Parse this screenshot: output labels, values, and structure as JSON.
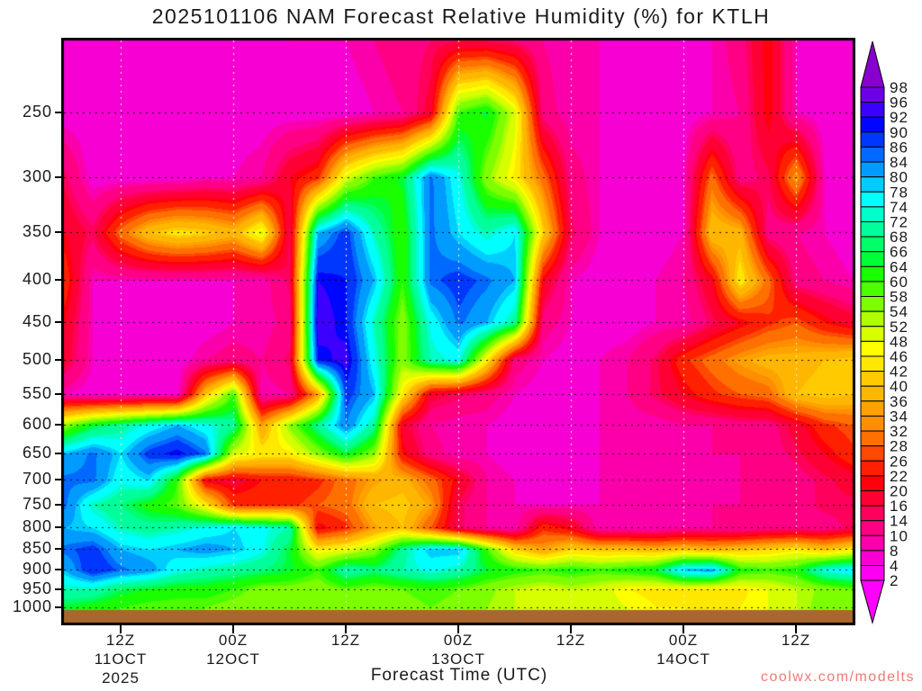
{
  "title": "2025101106 NAM Forecast Relative Humidity (%) for KTLH",
  "watermark": "coolwx.com/modelts",
  "watermark_color": "#F07A72",
  "chart_data": {
    "type": "heatmap",
    "title": "2025101106 NAM Forecast Relative Humidity (%) for KTLH",
    "xlabel": "Forecast Time (UTC)",
    "ylabel": "",
    "y_axis_kind": "log-pressure-hPa",
    "y_ticks": [
      250,
      300,
      350,
      400,
      450,
      500,
      550,
      600,
      650,
      700,
      750,
      800,
      850,
      900,
      950,
      1000
    ],
    "y_range_hpa": [
      205,
      1050
    ],
    "x_range_hours": [
      0,
      84
    ],
    "x_ticks": [
      {
        "hour": 6,
        "lines": [
          "12Z",
          "11OCT",
          "2025"
        ]
      },
      {
        "hour": 18,
        "lines": [
          "00Z",
          "12OCT"
        ]
      },
      {
        "hour": 30,
        "lines": [
          "12Z"
        ]
      },
      {
        "hour": 42,
        "lines": [
          "00Z",
          "13OCT"
        ]
      },
      {
        "hour": 54,
        "lines": [
          "12Z"
        ]
      },
      {
        "hour": 66,
        "lines": [
          "00Z",
          "14OCT"
        ]
      },
      {
        "hour": 78,
        "lines": [
          "12Z"
        ]
      }
    ],
    "grid": {
      "h_color": "#000000",
      "v_color": "#FFF5D2",
      "style": "dotted"
    },
    "legend_position": "right-colorbar",
    "level_boundaries": [
      2,
      4,
      8,
      10,
      14,
      16,
      20,
      22,
      26,
      28,
      32,
      34,
      36,
      40,
      42,
      46,
      48,
      52,
      54,
      58,
      60,
      64,
      66,
      68,
      72,
      74,
      78,
      80,
      84,
      86,
      90,
      92,
      96,
      98
    ],
    "band_colors": [
      "#FF00FF",
      "#FB00F2",
      "#F600D4",
      "#FB00AA",
      "#FF0084",
      "#FF005C",
      "#FF0034",
      "#FF000C",
      "#FF2000",
      "#FF4800",
      "#FF7000",
      "#FF8E00",
      "#FFA200",
      "#FFB600",
      "#FFCA00",
      "#FFE800",
      "#FFFF00",
      "#D7FF00",
      "#AFFF00",
      "#7DFF00",
      "#4BFF00",
      "#19FF00",
      "#00FF37",
      "#00FF69",
      "#00FF9B",
      "#00FFCD",
      "#00FFFF",
      "#00CDFF",
      "#009BFF",
      "#0069FF",
      "#0037FF",
      "#0005FF",
      "#3C00FF",
      "#6E00E6",
      "#8800CC"
    ],
    "ground_color": "#A9672F",
    "axis_color": "#000000",
    "hours": [
      0,
      3,
      6,
      9,
      12,
      15,
      18,
      21,
      24,
      27,
      30,
      33,
      36,
      39,
      42,
      45,
      48,
      51,
      54,
      57,
      60,
      63,
      66,
      69,
      72,
      75,
      78,
      81,
      84
    ],
    "pressure_levels": [
      205,
      250,
      300,
      350,
      400,
      450,
      500,
      550,
      600,
      650,
      700,
      750,
      800,
      850,
      900,
      950,
      1000
    ],
    "rh_grid": [
      [
        6,
        6,
        6,
        6,
        6,
        6,
        6,
        6,
        8,
        8,
        8,
        10,
        12,
        14,
        16,
        16,
        14,
        10,
        8,
        8,
        6,
        6,
        6,
        8,
        12,
        22,
        8,
        6,
        6
      ],
      [
        6,
        6,
        6,
        6,
        6,
        6,
        6,
        6,
        6,
        6,
        6,
        8,
        10,
        18,
        60,
        65,
        50,
        12,
        8,
        8,
        6,
        6,
        6,
        8,
        10,
        22,
        8,
        6,
        6
      ],
      [
        15,
        6,
        6,
        6,
        6,
        8,
        8,
        10,
        20,
        25,
        50,
        60,
        65,
        85,
        75,
        55,
        45,
        30,
        12,
        8,
        6,
        6,
        8,
        30,
        12,
        15,
        35,
        8,
        6
      ],
      [
        20,
        15,
        30,
        40,
        44,
        42,
        38,
        50,
        15,
        80,
        88,
        72,
        60,
        85,
        78,
        72,
        78,
        42,
        15,
        8,
        6,
        6,
        8,
        40,
        38,
        12,
        10,
        8,
        6
      ],
      [
        25,
        8,
        8,
        8,
        8,
        8,
        8,
        8,
        15,
        92,
        90,
        80,
        60,
        85,
        88,
        85,
        80,
        20,
        8,
        6,
        6,
        8,
        10,
        20,
        45,
        30,
        12,
        10,
        8
      ],
      [
        20,
        8,
        6,
        6,
        6,
        6,
        8,
        8,
        12,
        95,
        90,
        72,
        55,
        75,
        85,
        80,
        70,
        12,
        8,
        6,
        6,
        8,
        8,
        15,
        20,
        25,
        28,
        22,
        18
      ],
      [
        18,
        8,
        6,
        6,
        6,
        10,
        12,
        10,
        15,
        90,
        94,
        75,
        55,
        72,
        75,
        45,
        12,
        8,
        6,
        8,
        10,
        15,
        25,
        30,
        35,
        38,
        38,
        40,
        42
      ],
      [
        8,
        6,
        6,
        6,
        6,
        40,
        60,
        8,
        10,
        35,
        88,
        80,
        45,
        18,
        15,
        12,
        8,
        6,
        6,
        8,
        10,
        15,
        20,
        25,
        28,
        30,
        40,
        42,
        40
      ],
      [
        55,
        65,
        70,
        75,
        80,
        75,
        70,
        35,
        55,
        70,
        84,
        70,
        18,
        10,
        8,
        8,
        6,
        6,
        6,
        8,
        8,
        8,
        10,
        10,
        12,
        12,
        18,
        25,
        28
      ],
      [
        80,
        85,
        78,
        88,
        92,
        85,
        50,
        45,
        45,
        55,
        65,
        55,
        22,
        12,
        8,
        8,
        6,
        6,
        8,
        8,
        8,
        8,
        8,
        10,
        10,
        12,
        15,
        20,
        25
      ],
      [
        85,
        85,
        75,
        78,
        60,
        20,
        18,
        22,
        22,
        25,
        30,
        35,
        38,
        30,
        20,
        10,
        8,
        6,
        6,
        8,
        8,
        8,
        8,
        8,
        10,
        10,
        12,
        15,
        18
      ],
      [
        85,
        72,
        68,
        62,
        58,
        45,
        25,
        25,
        25,
        28,
        30,
        40,
        42,
        35,
        15,
        10,
        8,
        8,
        8,
        8,
        8,
        8,
        8,
        10,
        10,
        12,
        12,
        15,
        15
      ],
      [
        80,
        78,
        72,
        70,
        72,
        75,
        78,
        75,
        72,
        20,
        25,
        35,
        40,
        28,
        15,
        10,
        8,
        25,
        20,
        8,
        8,
        8,
        10,
        10,
        10,
        12,
        12,
        12,
        15
      ],
      [
        85,
        88,
        80,
        78,
        80,
        82,
        80,
        75,
        65,
        45,
        48,
        55,
        70,
        80,
        80,
        60,
        42,
        35,
        42,
        40,
        40,
        38,
        40,
        38,
        40,
        42,
        45,
        40,
        45
      ],
      [
        80,
        90,
        85,
        82,
        75,
        72,
        70,
        68,
        65,
        60,
        72,
        68,
        72,
        75,
        72,
        65,
        62,
        60,
        62,
        60,
        62,
        65,
        80,
        82,
        62,
        60,
        62,
        75,
        78
      ],
      [
        72,
        72,
        66,
        64,
        62,
        62,
        60,
        56,
        56,
        55,
        58,
        56,
        58,
        60,
        58,
        55,
        52,
        50,
        52,
        50,
        46,
        45,
        45,
        44,
        45,
        48,
        52,
        55,
        58
      ],
      [
        65,
        62,
        60,
        58,
        58,
        58,
        56,
        55,
        55,
        54,
        56,
        55,
        56,
        58,
        56,
        54,
        52,
        50,
        52,
        50,
        48,
        46,
        46,
        45,
        46,
        48,
        52,
        56,
        58
      ]
    ]
  }
}
